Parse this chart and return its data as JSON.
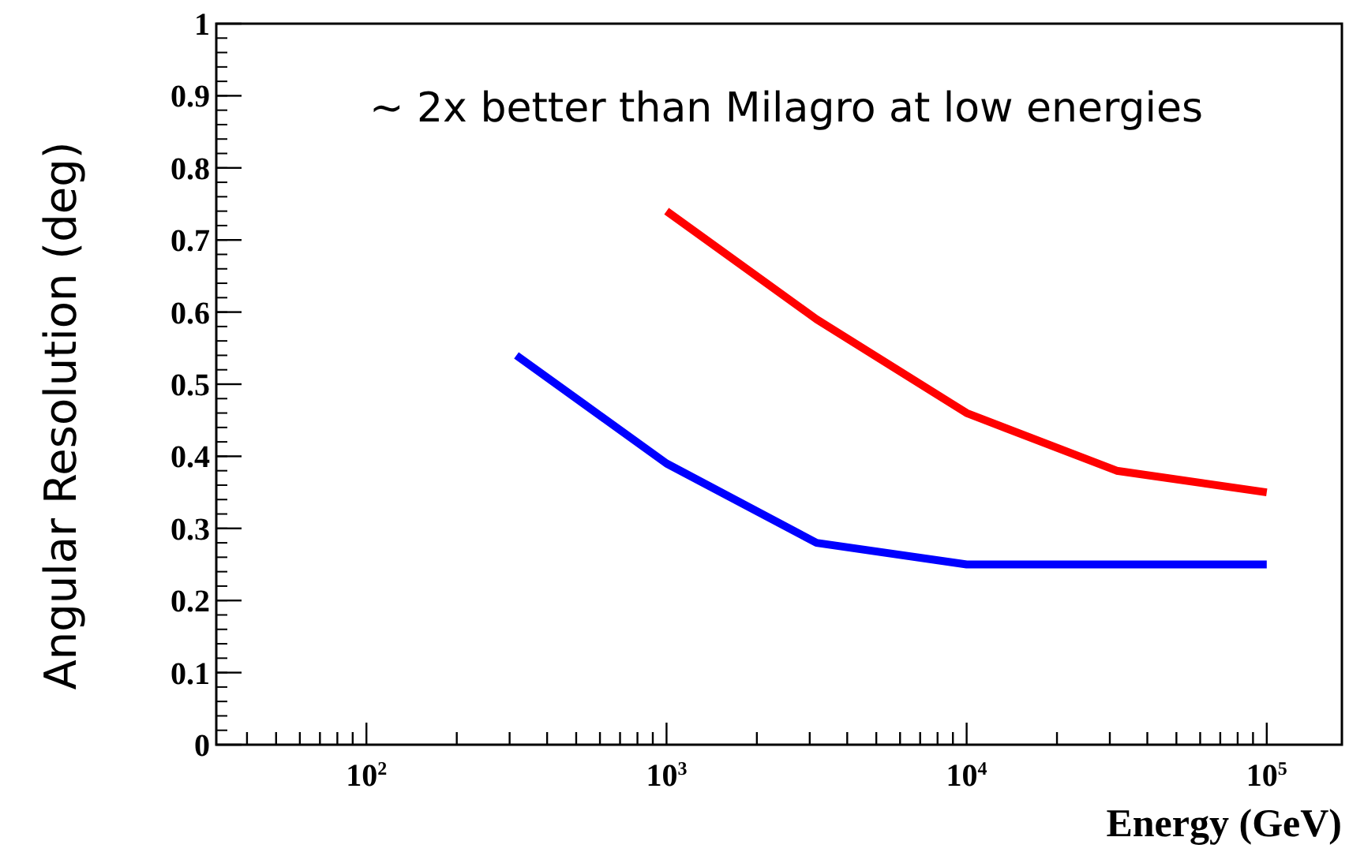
{
  "chart_data": {
    "type": "line",
    "xlabel": "Energy (GeV)",
    "ylabel": "Angular Resolution (deg)",
    "annotations": [
      "~ 2x better than Milagro at low energies"
    ],
    "log": "x",
    "xlim": [
      31.6,
      178000
    ],
    "ylim": [
      0,
      1
    ],
    "xticks": [
      {
        "value": 40,
        "label": null
      },
      {
        "value": 50,
        "label": null
      },
      {
        "value": 60,
        "label": null
      },
      {
        "value": 70,
        "label": null
      },
      {
        "value": 80,
        "label": null
      },
      {
        "value": 90,
        "label": null
      },
      {
        "value": 100,
        "label": "10$^{2}$"
      },
      {
        "value": 200,
        "label": null
      },
      {
        "value": 300,
        "label": null
      },
      {
        "value": 400,
        "label": null
      },
      {
        "value": 500,
        "label": null
      },
      {
        "value": 600,
        "label": null
      },
      {
        "value": 700,
        "label": null
      },
      {
        "value": 800,
        "label": null
      },
      {
        "value": 900,
        "label": null
      },
      {
        "value": 1000,
        "label": "10$^{3}$"
      },
      {
        "value": 2000,
        "label": null
      },
      {
        "value": 3000,
        "label": null
      },
      {
        "value": 4000,
        "label": null
      },
      {
        "value": 5000,
        "label": null
      },
      {
        "value": 6000,
        "label": null
      },
      {
        "value": 7000,
        "label": null
      },
      {
        "value": 8000,
        "label": null
      },
      {
        "value": 9000,
        "label": null
      },
      {
        "value": 10000,
        "label": "10$^{4}$"
      },
      {
        "value": 20000,
        "label": null
      },
      {
        "value": 30000,
        "label": null
      },
      {
        "value": 40000,
        "label": null
      },
      {
        "value": 50000,
        "label": null
      },
      {
        "value": 60000,
        "label": null
      },
      {
        "value": 70000,
        "label": null
      },
      {
        "value": 80000,
        "label": null
      },
      {
        "value": 90000,
        "label": null
      },
      {
        "value": 100000,
        "label": "10$^{5}$"
      }
    ],
    "yticks": [
      0,
      0.1,
      0.2,
      0.3,
      0.4,
      0.5,
      0.6,
      0.7,
      0.8,
      0.9,
      1
    ],
    "grid": false,
    "marker": "none",
    "line_style": "solid",
    "series": [
      {
        "color": "#0000ff",
        "x": [
          316,
          1000,
          3162,
          10000,
          31623,
          100000
        ],
        "values": [
          0.54,
          0.39,
          0.28,
          0.25,
          0.25,
          0.25
        ]
      },
      {
        "color": "#ff0000",
        "x": [
          1000,
          3162,
          10000,
          31623,
          100000
        ],
        "values": [
          0.74,
          0.59,
          0.46,
          0.38,
          0.35
        ]
      }
    ]
  }
}
